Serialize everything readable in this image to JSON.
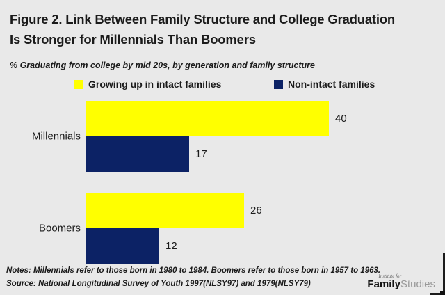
{
  "header": {
    "title_line1": "Figure 2. Link Between Family Structure and College Graduation",
    "title_line2": "Is Stronger for Millennials Than Boomers",
    "subtitle": "% Graduating from college by mid 20s, by generation and family structure"
  },
  "legend": {
    "items": [
      {
        "label": "Growing up in intact families",
        "color": "#ffff00"
      },
      {
        "label": "Non-intact families",
        "color": "#0c2265"
      }
    ]
  },
  "chart_data": {
    "type": "bar",
    "orientation": "horizontal",
    "title": "Figure 2. Link Between Family Structure and College Graduation Is Stronger for Millennials Than Boomers",
    "subtitle": "% Graduating from college by mid 20s, by generation and family structure",
    "categories": [
      "Millennials",
      "Boomers"
    ],
    "series": [
      {
        "name": "Growing up in intact families",
        "color": "#ffff00",
        "values": [
          40,
          26
        ]
      },
      {
        "name": "Non-intact families",
        "color": "#0c2265",
        "values": [
          17,
          12
        ]
      }
    ],
    "xlim": [
      0,
      46
    ],
    "grid": false,
    "legend_position": "top",
    "value_labels": true
  },
  "footer": {
    "notes": "Notes: Millennials refer to those born in 1980 to 1984. Boomers refer to those born in 1957 to 1963.",
    "source": "Source: National Longitudinal Survey of Youth 1997(NLSY97) and 1979(NLSY79)",
    "logo": {
      "top": "Institute for",
      "brand_bold": "Family",
      "brand_light": "Studies"
    }
  },
  "colors": {
    "background": "#e9e9e9",
    "text": "#1b1b1b",
    "yellow": "#ffff00",
    "navy": "#0c2265"
  }
}
